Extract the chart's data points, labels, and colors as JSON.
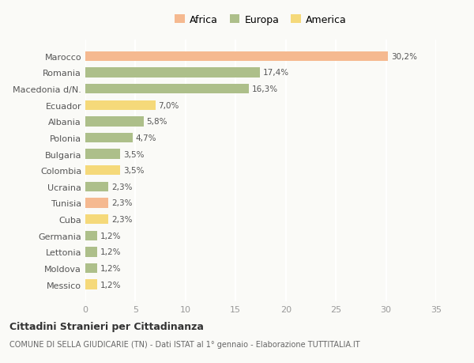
{
  "countries": [
    "Messico",
    "Moldova",
    "Lettonia",
    "Germania",
    "Cuba",
    "Tunisia",
    "Ucraina",
    "Colombia",
    "Bulgaria",
    "Polonia",
    "Albania",
    "Ecuador",
    "Macedonia d/N.",
    "Romania",
    "Marocco"
  ],
  "values": [
    1.2,
    1.2,
    1.2,
    1.2,
    2.3,
    2.3,
    2.3,
    3.5,
    3.5,
    4.7,
    5.8,
    7.0,
    16.3,
    17.4,
    30.2
  ],
  "labels": [
    "1,2%",
    "1,2%",
    "1,2%",
    "1,2%",
    "2,3%",
    "2,3%",
    "2,3%",
    "3,5%",
    "3,5%",
    "4,7%",
    "5,8%",
    "7,0%",
    "16,3%",
    "17,4%",
    "30,2%"
  ],
  "continents": [
    "America",
    "Europa",
    "Europa",
    "Europa",
    "America",
    "Africa",
    "Europa",
    "America",
    "Europa",
    "Europa",
    "Europa",
    "America",
    "Europa",
    "Europa",
    "Africa"
  ],
  "colors": {
    "Africa": "#F5B990",
    "Europa": "#ADBF8A",
    "America": "#F5D97A"
  },
  "background_color": "#FAFAF7",
  "title1": "Cittadini Stranieri per Cittadinanza",
  "title2": "COMUNE DI SELLA GIUDICARIE (TN) - Dati ISTAT al 1° gennaio - Elaborazione TUTTITALIA.IT",
  "xlim": [
    0,
    35
  ],
  "xticks": [
    0,
    5,
    10,
    15,
    20,
    25,
    30,
    35
  ],
  "bar_height": 0.6,
  "grid_color": "#FFFFFF",
  "label_color": "#555555",
  "tick_color": "#999999"
}
